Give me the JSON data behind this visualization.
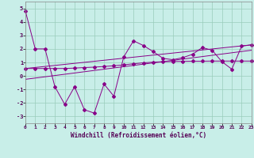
{
  "xlabel": "Windchill (Refroidissement éolien,°C)",
  "bg_color": "#c8eee8",
  "grid_color": "#99ccbb",
  "line_color": "#880088",
  "xlim": [
    0,
    23
  ],
  "ylim": [
    -3.5,
    5.5
  ],
  "yticks": [
    -3,
    -2,
    -1,
    0,
    1,
    2,
    3,
    4,
    5
  ],
  "xticks": [
    0,
    1,
    2,
    3,
    4,
    5,
    6,
    7,
    8,
    9,
    10,
    11,
    12,
    13,
    14,
    15,
    16,
    17,
    18,
    19,
    20,
    21,
    22,
    23
  ],
  "series1_x": [
    0,
    1,
    2,
    3,
    4,
    5,
    6,
    7,
    8,
    9,
    10,
    11,
    12,
    13,
    14,
    15,
    16,
    17,
    18,
    19,
    20,
    21,
    22,
    23
  ],
  "series1_y": [
    4.8,
    2.0,
    2.0,
    -0.8,
    -2.1,
    -0.8,
    -2.5,
    -2.75,
    -0.6,
    -1.5,
    1.4,
    2.6,
    2.25,
    1.8,
    1.3,
    1.2,
    1.35,
    1.6,
    2.1,
    1.9,
    1.05,
    0.5,
    2.2,
    2.3
  ],
  "series2_x": [
    0,
    1,
    2,
    3,
    4,
    5,
    6,
    7,
    8,
    9,
    10,
    11,
    12,
    13,
    14,
    15,
    16,
    17,
    18,
    19,
    20,
    21,
    22,
    23
  ],
  "series2_y": [
    0.55,
    0.55,
    0.55,
    0.55,
    0.55,
    0.58,
    0.62,
    0.65,
    0.7,
    0.75,
    0.82,
    0.9,
    0.97,
    1.02,
    1.05,
    1.07,
    1.08,
    1.09,
    1.09,
    1.1,
    1.1,
    1.1,
    1.1,
    1.1
  ],
  "series3_x": [
    0,
    23
  ],
  "series3_y": [
    -0.25,
    1.9
  ],
  "series4_x": [
    0,
    23
  ],
  "series4_y": [
    0.55,
    2.3
  ]
}
